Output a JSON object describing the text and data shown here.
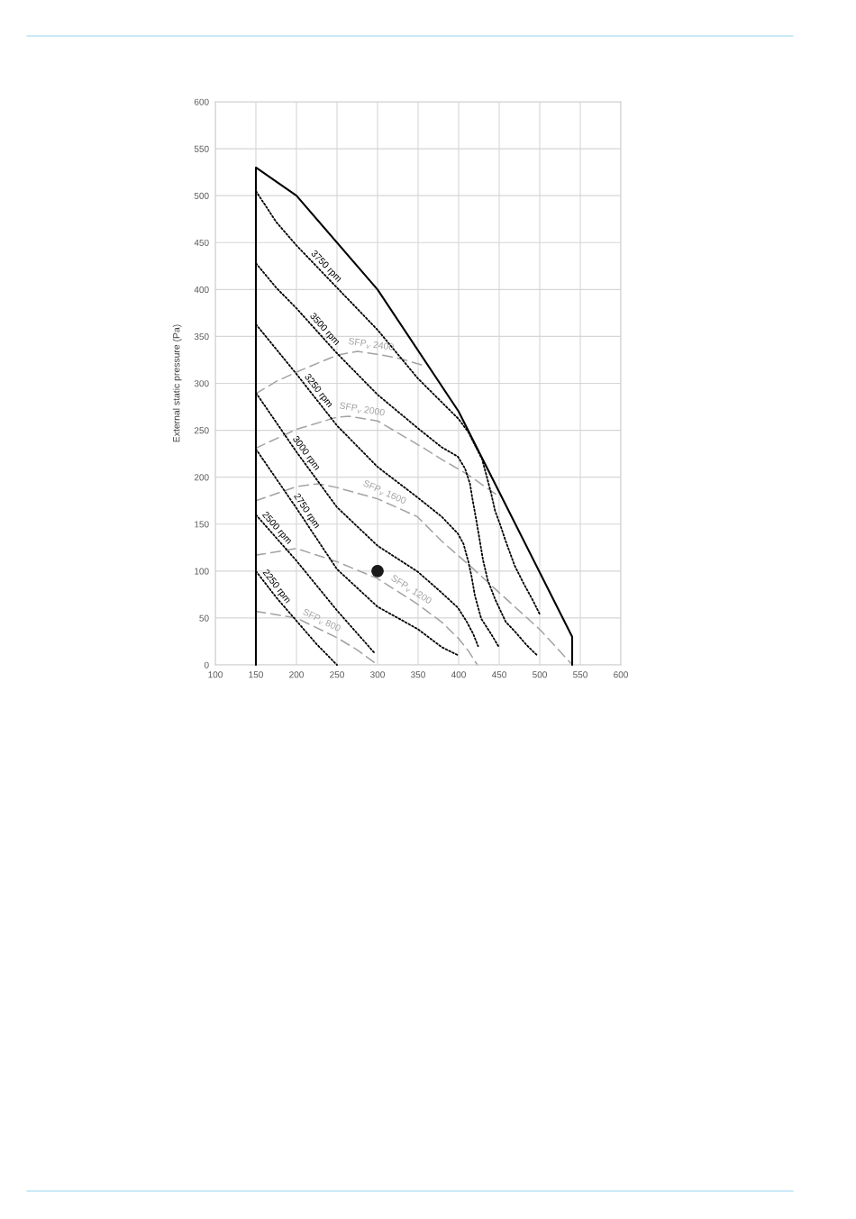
{
  "chart_data": {
    "type": "line",
    "ylabel": "External static pressure (Pa)",
    "xlim": [
      100,
      600
    ],
    "xticks": [
      100,
      150,
      200,
      250,
      300,
      350,
      400,
      450,
      500,
      550,
      600
    ],
    "ylim": [
      0,
      600
    ],
    "yticks": [
      0,
      50,
      100,
      150,
      200,
      250,
      300,
      350,
      400,
      450,
      500,
      550,
      600
    ],
    "grid": true,
    "legend": false,
    "marker": "none",
    "series": [
      {
        "color": "#000000",
        "line_style": "solid",
        "x": [
          150,
          150,
          200,
          300,
          400,
          540,
          540
        ],
        "values": [
          0,
          530,
          500,
          400,
          270,
          30,
          0
        ]
      },
      {
        "name": "3750 rpm",
        "color": "#000000",
        "line_style": "dotted",
        "x": [
          150,
          175,
          200,
          250,
          300,
          350,
          400,
          412,
          429,
          434,
          440,
          445,
          451,
          458,
          469,
          480,
          492,
          500
        ],
        "values": [
          505,
          472,
          447,
          402,
          357,
          305,
          262,
          248,
          219,
          203,
          183,
          164,
          150,
          132,
          106,
          87,
          68,
          54
        ]
      },
      {
        "name": "3500 rpm",
        "color": "#000000",
        "line_style": "dotted",
        "x": [
          150,
          175,
          200,
          250,
          300,
          350,
          379,
          399,
          408,
          414,
          417,
          421,
          425,
          430,
          436,
          445,
          458,
          469,
          484,
          497
        ],
        "values": [
          428,
          402,
          380,
          332,
          288,
          252,
          232,
          222,
          209,
          193,
          177,
          158,
          138,
          112,
          90,
          70,
          46,
          36,
          21,
          10
        ]
      },
      {
        "name": "3250 rpm",
        "color": "#000000",
        "line_style": "dotted",
        "x": [
          150,
          200,
          250,
          300,
          350,
          379,
          399,
          406,
          412,
          416,
          420,
          428,
          440,
          449
        ],
        "values": [
          363,
          310,
          255,
          211,
          178,
          158,
          140,
          129,
          110,
          94,
          74,
          49,
          33,
          20
        ]
      },
      {
        "name": "3000 rpm",
        "color": "#000000",
        "line_style": "dotted",
        "x": [
          150,
          200,
          250,
          300,
          350,
          379,
          399,
          410,
          418,
          424
        ],
        "values": [
          290,
          227,
          168,
          127,
          99,
          77,
          61,
          46,
          33,
          20
        ]
      },
      {
        "name": "2750 rpm",
        "color": "#000000",
        "line_style": "dotted",
        "x": [
          150,
          200,
          250,
          300,
          350,
          379,
          400
        ],
        "values": [
          230,
          167,
          102,
          62,
          38,
          19,
          10
        ]
      },
      {
        "name": "2500 rpm",
        "color": "#000000",
        "line_style": "dotted",
        "x": [
          150,
          200,
          250,
          297
        ],
        "values": [
          160,
          111,
          58,
          12
        ]
      },
      {
        "name": "2250 rpm",
        "color": "#000000",
        "line_style": "dotted",
        "x": [
          150,
          175,
          200,
          225,
          250
        ],
        "values": [
          100,
          72,
          47,
          22,
          0
        ]
      },
      {
        "name": "SFP$_{v}$ 2400",
        "color": "#a3a3a3",
        "line_style": "dashed",
        "x": [
          150,
          175,
          200,
          250,
          275,
          300,
          330,
          360
        ],
        "values": [
          289,
          302,
          312,
          330,
          334,
          331,
          326,
          318
        ]
      },
      {
        "name": "SFP$_{v}$ 2000",
        "color": "#a3a3a3",
        "line_style": "dashed",
        "x": [
          150,
          200,
          250,
          265,
          300,
          357,
          379,
          411,
          449
        ],
        "values": [
          231,
          251,
          264,
          265,
          260,
          231,
          219,
          203,
          180
        ]
      },
      {
        "name": "SFP$_{v}$ 1600",
        "color": "#a3a3a3",
        "line_style": "dashed",
        "x": [
          150,
          200,
          227,
          250,
          300,
          349,
          379,
          416,
          445,
          501,
          538
        ],
        "values": [
          175,
          190,
          193,
          189,
          177,
          158,
          132,
          104,
          81,
          37,
          2
        ]
      },
      {
        "name": "SFP$_{v}$ 1200",
        "color": "#a3a3a3",
        "line_style": "dashed",
        "x": [
          150,
          200,
          250,
          300,
          349,
          380,
          400,
          412,
          423
        ],
        "values": [
          117,
          124,
          110,
          92,
          65,
          45,
          28,
          15,
          0
        ]
      },
      {
        "name": "SFP$_{v}$ 800",
        "color": "#a3a3a3",
        "line_style": "dashed",
        "x": [
          150,
          200,
          250,
          275,
          300
        ],
        "values": [
          57,
          50,
          29,
          16,
          0
        ]
      },
      {
        "type": "scatter",
        "color": "#1a1a1a",
        "marker": "circle",
        "x": [
          300
        ],
        "values": [
          100
        ]
      }
    ]
  }
}
